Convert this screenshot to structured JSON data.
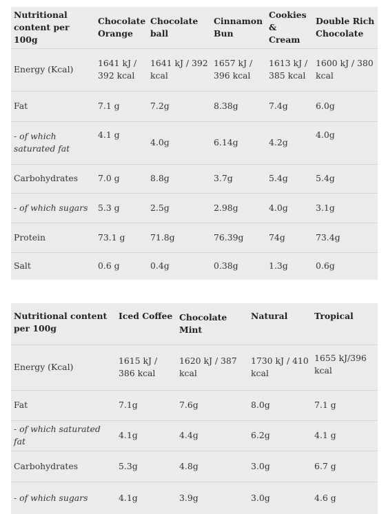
{
  "table1": {
    "headers": [
      "Nutritional content per 100g",
      "Chocolate Orange",
      "Chocolate ball",
      "Cinnamon Bun",
      "Cookies & Cream",
      "Double Rich Chocolate"
    ],
    "rows": [
      [
        "Energy (Kcal)",
        "1641 kJ / 392 kcal",
        "1641 kJ / 392 kcal",
        "1657 kJ / 396 kcal",
        "1613 kJ / 385 kcal",
        "1600 kJ / 380 kcal"
      ],
      [
        "Fat",
        "7.1 g",
        "7.2g",
        "8.38g",
        "7.4g",
        "6.0g"
      ],
      [
        "- of which saturated fat",
        "4.1 g",
        "4.0g",
        "6.14g",
        "4.2g",
        "4.0g"
      ],
      [
        "Carbohydrates",
        "7.0 g",
        "8.8g",
        "3.7g",
        "5.4g",
        "5.4g"
      ],
      [
        "- of which sugars",
        "5.3 g",
        "2.5g",
        "2.98g",
        "4.0g",
        "3.1g"
      ],
      [
        "Protein",
        "73.1 g",
        "71.8g",
        "76.39g",
        "74g",
        "73.4g"
      ],
      [
        "Salt",
        "0.6 g",
        "0.4g",
        "0.38g",
        "1.3g",
        "0.6g"
      ]
    ]
  },
  "table2": {
    "headers": [
      "Nutritional content per 100g",
      "Iced Coffee",
      "Chocolate Mint",
      "Natural",
      "Tropical"
    ],
    "rows": [
      [
        "Energy (Kcal)",
        "1615 kJ / 386 kcal",
        "1620 kJ / 387 kcal",
        "1730 kJ / 410 kcal",
        "1655 kJ/396 kcal"
      ],
      [
        "Fat",
        "7.1g",
        "7.6g",
        "8.0g",
        "7.1 g"
      ],
      [
        "- of which saturated fat",
        "4.1g",
        "4.4g",
        "6.2g",
        "4.1 g"
      ],
      [
        "Carbohydrates",
        "5.3g",
        "4.8g",
        "3.0g",
        "6.7 g"
      ],
      [
        "- of which sugars",
        "4.1g",
        "3.9g",
        "3.0g",
        "4.6 g"
      ]
    ]
  }
}
